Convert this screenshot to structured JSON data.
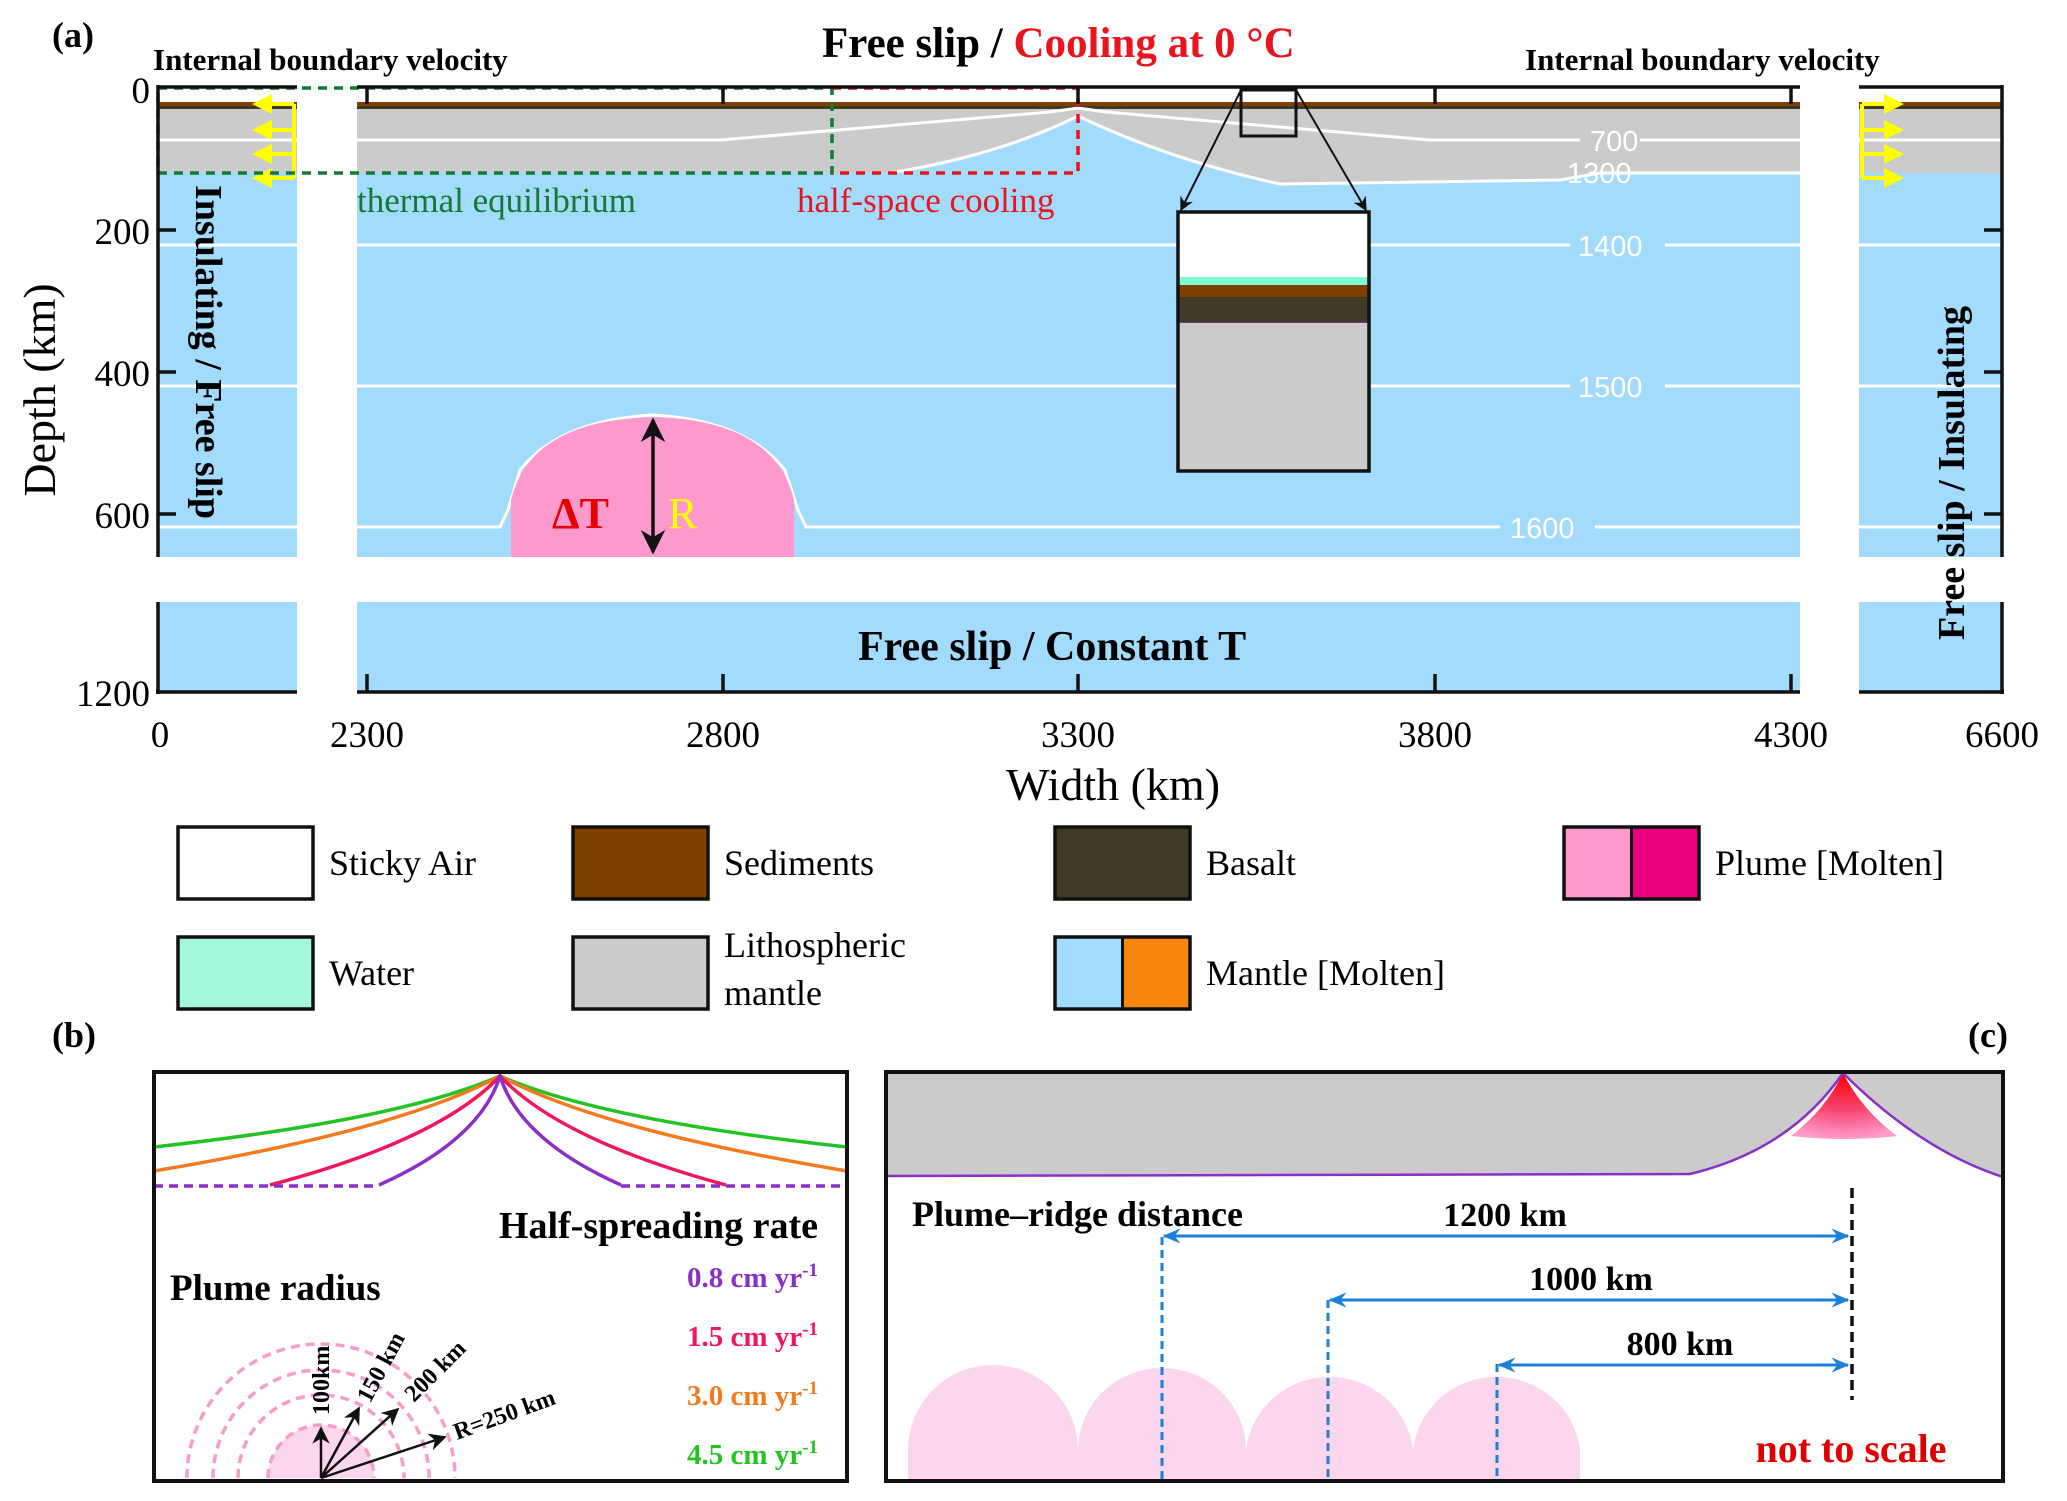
{
  "panels": {
    "a": {
      "label": "(a)",
      "top_left_label": "Internal boundary velocity",
      "top_right_label": "Internal boundary velocity",
      "top_center_black": "Free slip / ",
      "top_center_red": "Cooling at 0 °C",
      "bottom_center_label": "Free slip / Constant T",
      "left_side_label": "Insulating / Free slip",
      "right_side_label": "Free slip / Insulating",
      "thermal_equilibrium_label": "thermal equilibrium",
      "half_space_cooling_label": "half-space cooling",
      "delta_t_label": "ΔT",
      "radius_label": "R",
      "ylabel": "Depth (km)",
      "xlabel": "Width (km)",
      "y_ticks": [
        "0",
        "200",
        "400",
        "600",
        "1200"
      ],
      "x_ticks": [
        "0",
        "2300",
        "2800",
        "3300",
        "3800",
        "4300",
        "6600"
      ],
      "isotherms": [
        "700",
        "1300",
        "1400",
        "1500",
        "1600"
      ]
    },
    "b": {
      "label": "(b)",
      "rate_title": "Half-spreading rate",
      "rates": [
        {
          "text": "0.8 cm yr",
          "sup": "-1",
          "color": "#8b2fc9"
        },
        {
          "text": "1.5 cm yr",
          "sup": "-1",
          "color": "#f0185a"
        },
        {
          "text": "3.0 cm yr",
          "sup": "-1",
          "color": "#f47a20"
        },
        {
          "text": "4.5 cm yr",
          "sup": "-1",
          "color": "#22c322"
        }
      ],
      "radius_title": "Plume radius",
      "radii": [
        "100km",
        "150 km",
        "200 km",
        "R=250 km"
      ]
    },
    "c": {
      "label": "(c)",
      "distance_title": "Plume–ridge distance",
      "distances": [
        "1200 km",
        "1000 km",
        "800 km"
      ],
      "note": "not to scale"
    }
  },
  "legend": [
    {
      "label": "Sticky Air",
      "colors": [
        "#ffffff"
      ]
    },
    {
      "label": "Sediments",
      "colors": [
        "#7f3f00"
      ]
    },
    {
      "label": "Basalt",
      "colors": [
        "#3f3a26"
      ]
    },
    {
      "label": "Plume [Molten]",
      "colors": [
        "#fd99cc",
        "#e8007d"
      ]
    },
    {
      "label": "Water",
      "colors": [
        "#a2f7dc"
      ]
    },
    {
      "label": "Lithospheric\nmantle",
      "colors": [
        "#cbcbcb"
      ]
    },
    {
      "label": "Mantle [Molten]",
      "colors": [
        "#a3dbfd",
        "#f8860a"
      ]
    }
  ],
  "colors": {
    "mantle": "#a3dbfd",
    "lithosphere": "#cbcbcb",
    "plume": "#fd99cc",
    "plume_light": "#fcd6ec",
    "sediment": "#7f3f00",
    "basalt": "#3f3a26",
    "water": "#7dfbcf",
    "thermal_green": "#137a33",
    "half_space_red": "#e8141e",
    "arrow_yellow": "#ffff00",
    "arrow_blue": "#1e7fd6"
  }
}
